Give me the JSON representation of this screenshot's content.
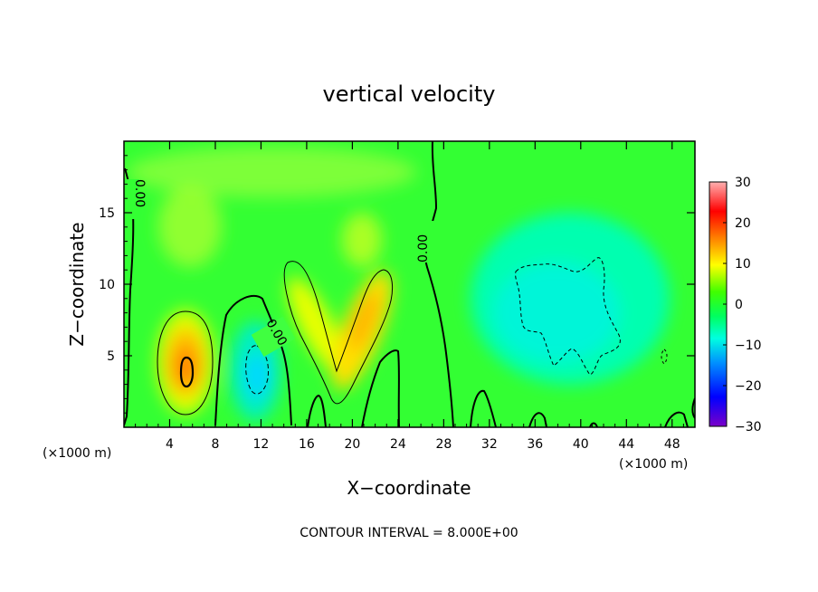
{
  "chart_data": {
    "type": "heatmap",
    "title": "vertical velocity",
    "xlabel": "X−coordinate",
    "ylabel": "Z−coordinate",
    "x_unit_left": "(×1000 m)",
    "x_unit_right": "(×1000 m)",
    "x_ticks": [
      4,
      8,
      12,
      16,
      20,
      24,
      28,
      32,
      36,
      40,
      44,
      48
    ],
    "y_ticks": [
      5,
      10,
      15
    ],
    "xlim": [
      0,
      50
    ],
    "ylim": [
      0,
      20
    ],
    "colorbar": {
      "ticks": [
        "30",
        "20",
        "10",
        "0",
        "−10",
        "−20",
        "−30"
      ],
      "vmin": -30,
      "vmax": 30,
      "colors": [
        "#7a00c8",
        "#0000ff",
        "#0090ff",
        "#00ffe0",
        "#00ff00",
        "#b0ff00",
        "#ffff00",
        "#ff8c00",
        "#ff0000",
        "#ffb0b0"
      ]
    },
    "contour_labels": [
      "0.00",
      "0.00",
      "0.00"
    ],
    "contour_interval_text": "CONTOUR INTERVAL = 8.000E+00",
    "features": [
      {
        "kind": "updraft",
        "x": 5.6,
        "z": 4,
        "peak": 18
      },
      {
        "kind": "updraft",
        "x": 15.5,
        "z": 8.5,
        "peak": 10
      },
      {
        "kind": "updraft",
        "x": 21.5,
        "z": 8,
        "peak": 13
      },
      {
        "kind": "downdraft",
        "x": 11.5,
        "z": 3.5,
        "peak": -9
      },
      {
        "kind": "downdraft",
        "x": 40,
        "z": 8,
        "peak": -7
      }
    ],
    "grid": false
  }
}
